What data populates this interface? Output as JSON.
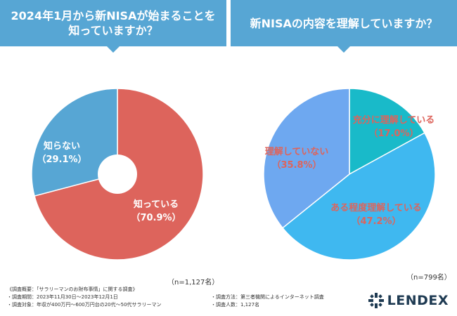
{
  "colors": {
    "banner": "#57a6d4",
    "slice_red": "#dd645c",
    "slice_blue_left": "#57a6d4",
    "slice_teal": "#19bac9",
    "slice_sky": "#3fb8f0",
    "slice_periwinkle": "#6ea8f0",
    "label_red": "#dd645c"
  },
  "left_panel": {
    "title": "2024年1月から新NISAが始まることを\n知っていますか？",
    "sample_size": "（n=1,127名）"
  },
  "right_panel": {
    "title": "新NISAの内容を理解していますか？",
    "sample_size": "（n=799名）"
  },
  "chart_data": [
    {
      "type": "pie",
      "donut": true,
      "title": "2024年1月から新NISAが始まることを知っていますか？",
      "n": "n=1,127名",
      "slices": [
        {
          "label": "知っている",
          "pct_label": "（70.9%）",
          "value": 70.9
        },
        {
          "label": "知らない",
          "pct_label": "（29.1%）",
          "value": 29.1
        }
      ]
    },
    {
      "type": "pie",
      "donut": false,
      "title": "新NISAの内容を理解していますか？",
      "n": "n=799名",
      "slices": [
        {
          "label": "充分に理解している",
          "pct_label": "（17.0%）",
          "value": 17.0
        },
        {
          "label": "ある程度理解している",
          "pct_label": "（47.2%）",
          "value": 47.2
        },
        {
          "label": "理解していない",
          "pct_label": "（35.8%）",
          "value": 35.8
        }
      ]
    }
  ],
  "footer": {
    "summary": "《調査概要：「サラリーマンのお財布事情」に関する調査》",
    "period": "・調査期間：2023年11月30日〜2023年12月1日",
    "method": "・調査方法：第三者機関によるインターネット調査",
    "target": "・調査対象：年収が400万円〜600万円台の20代〜50代サラリーマン",
    "count": "・調査人数：1,127名"
  },
  "logo": {
    "icon": "lendex-logo-icon",
    "text": "LENDEX"
  }
}
